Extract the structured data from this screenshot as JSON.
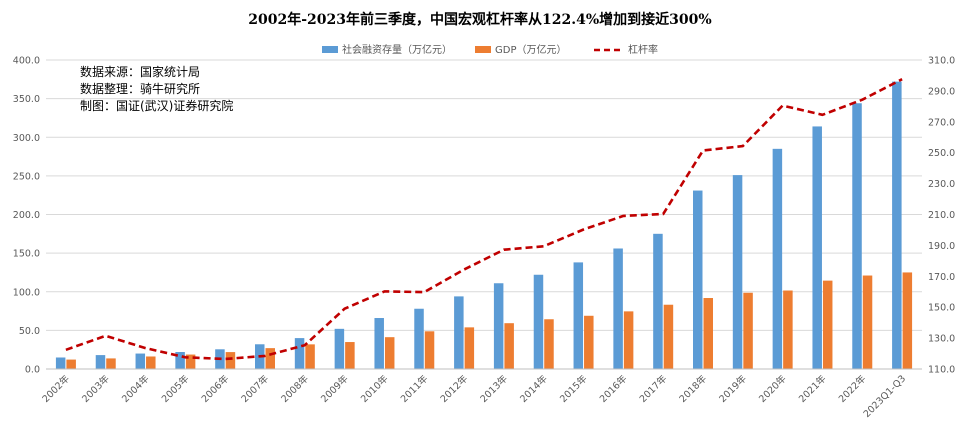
{
  "chart_data": {
    "type": "bar",
    "title": "2002年-2023年前三季度，中国宏观杠杆率从122.4%增加到接近300%",
    "categories": [
      "2002年",
      "2003年",
      "2004年",
      "2005年",
      "2006年",
      "2007年",
      "2008年",
      "2009年",
      "2010年",
      "2011年",
      "2012年",
      "2013年",
      "2014年",
      "2015年",
      "2016年",
      "2017年",
      "2018年",
      "2019年",
      "2020年",
      "2021年",
      "2022年",
      "2023Q1-Q3"
    ],
    "series": [
      {
        "name": "社会融资存量（万亿元）",
        "type": "bar",
        "axis": "left",
        "color": "#5b9bd5",
        "values": [
          14.9,
          18.0,
          20.0,
          22.0,
          25.5,
          32.0,
          40.0,
          52.0,
          66.0,
          78.0,
          94.0,
          111.0,
          122.0,
          138.0,
          156.0,
          175.0,
          231.0,
          251.0,
          285.0,
          314.0,
          344.0,
          372.0
        ]
      },
      {
        "name": "GDP（万亿元）",
        "type": "bar",
        "axis": "left",
        "color": "#ed7d31",
        "values": [
          12.2,
          13.7,
          16.2,
          18.7,
          21.9,
          27.0,
          31.9,
          34.9,
          41.2,
          48.8,
          53.9,
          59.3,
          64.4,
          68.9,
          74.6,
          83.2,
          91.9,
          98.7,
          101.6,
          114.4,
          121.0,
          125.0
        ]
      },
      {
        "name": "杠杆率",
        "type": "line",
        "axis": "right",
        "color": "#c00000",
        "style": "dashed",
        "values": [
          122.4,
          131.5,
          123.5,
          117.6,
          116.5,
          118.5,
          125.4,
          149.0,
          160.2,
          159.8,
          174.4,
          187.2,
          189.4,
          200.3,
          209.1,
          210.3,
          251.4,
          254.3,
          280.5,
          274.5,
          284.3,
          297.6
        ]
      }
    ],
    "y_left": {
      "min": 0,
      "max": 400,
      "ticks": [
        "0.0",
        "50.0",
        "100.0",
        "150.0",
        "200.0",
        "250.0",
        "300.0",
        "350.0",
        "400.0"
      ]
    },
    "y_right": {
      "min": 110,
      "max": 310,
      "ticks": [
        "110.0",
        "130.0",
        "150.0",
        "170.0",
        "190.0",
        "210.0",
        "230.0",
        "250.0",
        "270.0",
        "290.0",
        "310.0"
      ]
    },
    "grid": true,
    "legend": "top-center",
    "notes": [
      "数据来源：国家统计局",
      "数据整理：骑牛研究所",
      "制图：国证(武汉)证券研究院"
    ]
  }
}
